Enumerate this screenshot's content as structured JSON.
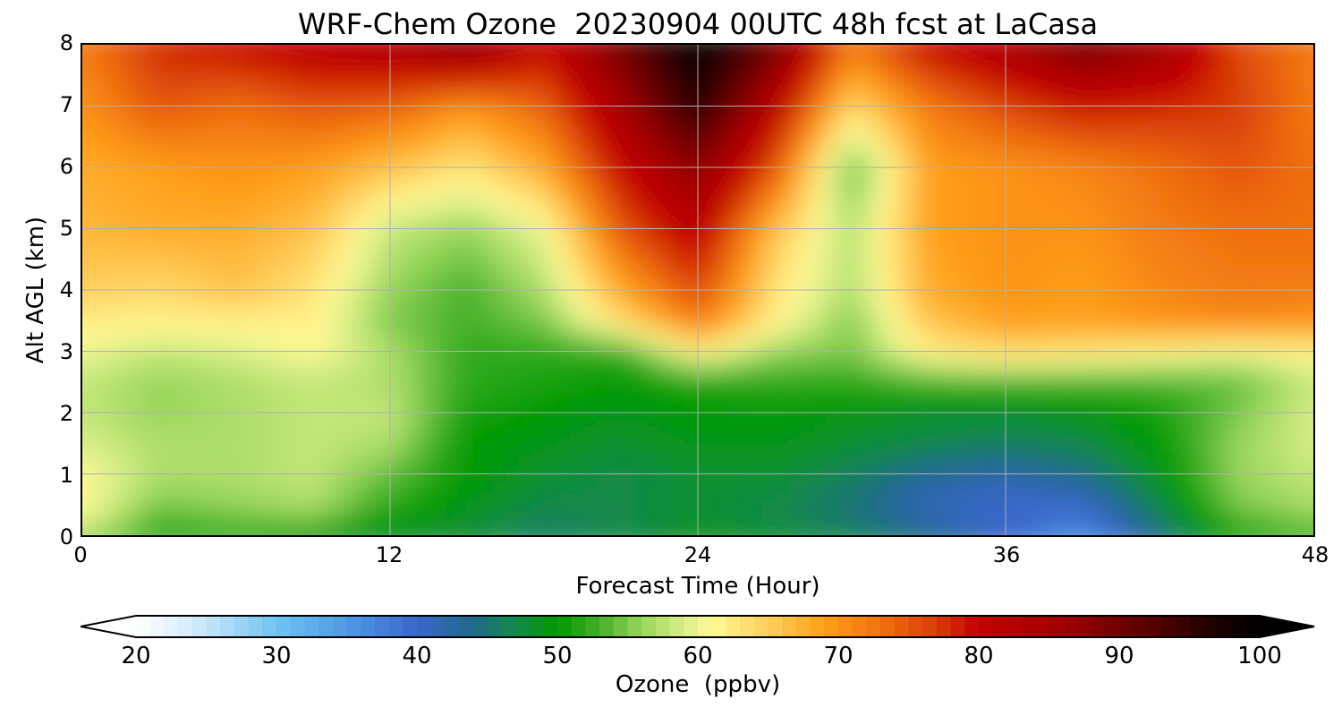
{
  "chart_data": {
    "type": "heatmap",
    "title": "WRF-Chem Ozone  20230904 00UTC 48h fcst at LaCasa",
    "xlabel": "Forecast Time (Hour)",
    "ylabel": "Alt AGL (km)",
    "xlim": [
      0,
      48
    ],
    "ylim": [
      0,
      8
    ],
    "xticks": [
      0,
      12,
      24,
      36,
      48
    ],
    "yticks": [
      0,
      1,
      2,
      3,
      4,
      5,
      6,
      7,
      8
    ],
    "grid": true,
    "colorbar": {
      "label": "Ozone  (ppbv)",
      "min": 20,
      "max": 100,
      "ticks": [
        20,
        30,
        40,
        50,
        60,
        70,
        80,
        90,
        100
      ],
      "extend": "both",
      "orientation": "horizontal",
      "colors": [
        {
          "v": 20,
          "c": "#ffffff"
        },
        {
          "v": 24,
          "c": "#d6ecfa"
        },
        {
          "v": 30,
          "c": "#6ec3f2"
        },
        {
          "v": 36,
          "c": "#4a90e0"
        },
        {
          "v": 40,
          "c": "#3a66cc"
        },
        {
          "v": 44,
          "c": "#1f6a8a"
        },
        {
          "v": 47,
          "c": "#138a4a"
        },
        {
          "v": 50,
          "c": "#009a00"
        },
        {
          "v": 53,
          "c": "#45b02a"
        },
        {
          "v": 56,
          "c": "#98d65a"
        },
        {
          "v": 59,
          "c": "#d9ee88"
        },
        {
          "v": 61,
          "c": "#fffa96"
        },
        {
          "v": 65,
          "c": "#ffcf5c"
        },
        {
          "v": 69,
          "c": "#ff9f1a"
        },
        {
          "v": 73,
          "c": "#f07010"
        },
        {
          "v": 77,
          "c": "#d83c06"
        },
        {
          "v": 80,
          "c": "#c40000"
        },
        {
          "v": 86,
          "c": "#a00000"
        },
        {
          "v": 92,
          "c": "#5a0000"
        },
        {
          "v": 97,
          "c": "#1a0000"
        },
        {
          "v": 100,
          "c": "#000000"
        }
      ]
    },
    "altitudes_km": [
      0,
      0.25,
      0.5,
      1,
      1.5,
      2,
      2.5,
      3,
      3.5,
      4,
      5,
      6,
      7,
      8
    ],
    "times_h": [
      0,
      3,
      6,
      9,
      12,
      15,
      18,
      21,
      24,
      27,
      30,
      33,
      36,
      39,
      42,
      45,
      48
    ],
    "ozone_ppbv": [
      [
        56,
        52,
        52,
        49,
        48,
        48,
        46,
        47,
        49,
        48,
        47,
        44,
        40,
        36,
        44,
        51,
        53
      ],
      [
        60,
        53,
        54,
        55,
        50,
        48,
        46,
        47,
        48,
        47,
        45,
        42,
        40,
        38,
        46,
        53,
        55
      ],
      [
        61,
        55,
        56,
        57,
        52,
        49,
        47,
        47,
        48,
        47,
        45,
        41,
        40,
        40,
        47,
        55,
        57
      ],
      [
        61,
        57,
        57,
        58,
        54,
        50,
        48,
        47,
        48,
        48,
        46,
        43,
        42,
        44,
        49,
        56,
        58
      ],
      [
        59,
        57,
        57,
        58,
        57,
        50,
        49,
        48,
        49,
        49,
        48,
        47,
        46,
        47,
        50,
        56,
        59
      ],
      [
        58,
        56,
        57,
        58,
        58,
        51,
        50,
        49,
        50,
        50,
        49,
        48,
        48,
        49,
        51,
        55,
        59
      ],
      [
        58,
        56,
        57,
        58,
        57,
        52,
        51,
        50,
        51,
        52,
        52,
        53,
        53,
        53,
        53,
        54,
        58
      ],
      [
        60,
        58,
        59,
        61,
        57,
        52,
        52,
        52,
        62,
        56,
        55,
        62,
        64,
        63,
        62,
        60,
        62
      ],
      [
        62,
        62,
        62,
        62,
        55,
        53,
        55,
        64,
        72,
        62,
        55,
        66,
        69,
        69,
        70,
        71,
        70
      ],
      [
        65,
        64,
        66,
        63,
        56,
        53,
        57,
        68,
        76,
        63,
        57,
        68,
        70,
        69,
        71,
        72,
        72
      ],
      [
        67,
        68,
        68,
        66,
        58,
        56,
        60,
        75,
        82,
        66,
        57,
        69,
        70,
        70,
        72,
        73,
        73
      ],
      [
        68,
        69,
        70,
        69,
        66,
        63,
        68,
        80,
        88,
        75,
        54,
        69,
        70,
        71,
        73,
        75,
        73
      ],
      [
        70,
        75,
        73,
        75,
        74,
        70,
        74,
        85,
        96,
        82,
        64,
        72,
        76,
        79,
        78,
        77,
        72
      ],
      [
        72,
        78,
        80,
        82,
        84,
        88,
        80,
        90,
        100,
        90,
        72,
        80,
        84,
        90,
        86,
        76,
        72
      ]
    ]
  }
}
